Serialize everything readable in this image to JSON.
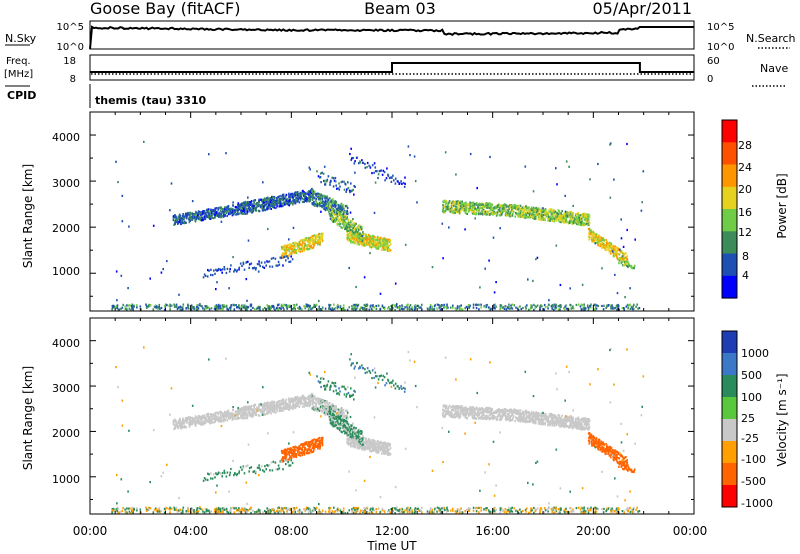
{
  "header": {
    "station": "Goose Bay (fitACF)",
    "beam": "Beam 03",
    "date": "05/Apr/2011"
  },
  "strip": {
    "nsky_label": "N.Sky",
    "nsky_ticks": [
      "10^5",
      "10^0"
    ],
    "nsearch_label": "N.Search",
    "nsearch_ticks": [
      "10^5",
      "10^0"
    ],
    "freq_label_1": "Freq.",
    "freq_label_2": "[MHz]",
    "freq_ticks": [
      "18",
      "8"
    ],
    "nave_label": "Nave",
    "nave_ticks": [
      "60",
      "0"
    ],
    "cpid_label": "CPID",
    "cpid_value": "themis (tau) 3310",
    "freq_switch_times": [
      12.0,
      21.85
    ]
  },
  "xaxis": {
    "label": "Time UT",
    "ticks": [
      "00:00",
      "04:00",
      "08:00",
      "12:00",
      "16:00",
      "20:00",
      "00:00"
    ],
    "range_hours": [
      0,
      24
    ]
  },
  "power_panel": {
    "ylabel": "Slant Range [km]",
    "yticks": [
      "1000",
      "2000",
      "3000",
      "4000"
    ],
    "colorbar_label": "Power [dB]",
    "colorbar_ticks": [
      "4",
      "8",
      "12",
      "16",
      "20",
      "24",
      "28"
    ],
    "colors": [
      "#0000ff",
      "#1e50b4",
      "#3c8c5a",
      "#6ecc46",
      "#e6d21e",
      "#ff9600",
      "#ff5000",
      "#ff0000"
    ]
  },
  "velocity_panel": {
    "ylabel": "Slant Range [km]",
    "yticks": [
      "1000",
      "2000",
      "3000",
      "4000"
    ],
    "colorbar_label": "Velocity [m s⁻¹]",
    "colorbar_ticks": [
      "1000",
      "500",
      "100",
      "25",
      "-25",
      "-100",
      "-500",
      "-1000"
    ],
    "colors": [
      "#1e3cb4",
      "#3c78c8",
      "#2a8c5a",
      "#5ac83c",
      "#c8c8c8",
      "#ffa000",
      "#ff6400",
      "#ff0000"
    ]
  },
  "chart_data": {
    "type": "heatmap",
    "title": "Goose Bay (fitACF) Beam 03 05/Apr/2011",
    "xlabel": "Time UT",
    "ylabel": "Slant Range [km]",
    "xlim_hours": [
      0,
      24
    ],
    "ylim_km": [
      180,
      4500
    ],
    "features": [
      {
        "name": "main F-region band",
        "t_start": 3.3,
        "t_end": 10.2,
        "range_start_km": 2150,
        "range_end_km": 2700,
        "power_db": 10,
        "velocity_ms": 0
      },
      {
        "name": "post-midnight band",
        "t_start": 14.0,
        "t_end": 19.8,
        "range_start_km": 2450,
        "range_end_km": 2150,
        "power_db": 14,
        "velocity_ms": 0
      },
      {
        "name": "intense patch",
        "t_start": 10.2,
        "t_end": 11.8,
        "range_start_km": 1750,
        "range_end_km": 1600,
        "power_db": 18,
        "velocity_ms": 0
      },
      {
        "name": "low-range echo",
        "t_start": 7.5,
        "t_end": 9.2,
        "range_start_km": 1400,
        "range_end_km": 1800,
        "power_db": 18,
        "velocity_ms": -300
      },
      {
        "name": "descending echo",
        "t_start": 19.8,
        "t_end": 21.2,
        "range_start_km": 1800,
        "range_end_km": 1300,
        "power_db": 18,
        "velocity_ms": -200
      },
      {
        "name": "near-range ground scatter",
        "t_start": 0.8,
        "t_end": 21.8,
        "range_start_km": 200,
        "range_end_km": 300,
        "power_db": 8,
        "velocity_ms": 0
      }
    ]
  }
}
